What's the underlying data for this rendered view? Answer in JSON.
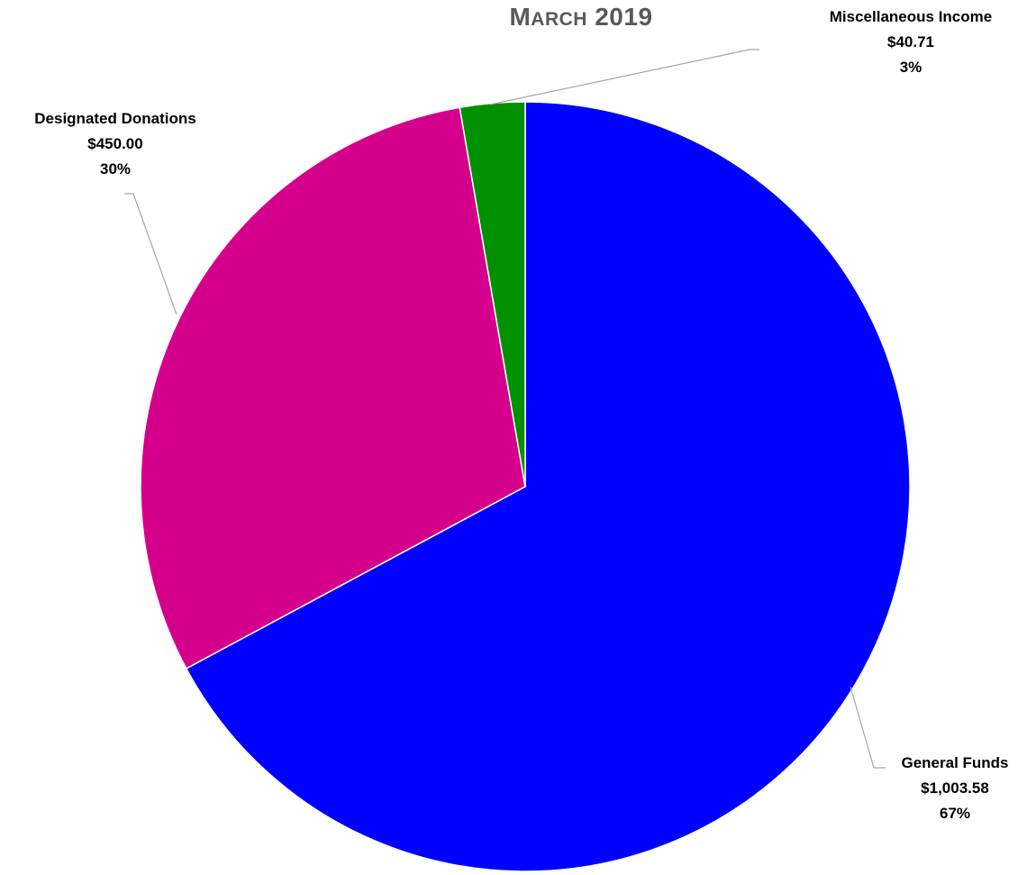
{
  "chart_data": {
    "type": "pie",
    "title": "March 2019",
    "slices": [
      {
        "label": "General Funds",
        "value": 1003.58,
        "value_label": "$1,003.58",
        "percent_label": "67%",
        "color": "#0000FF"
      },
      {
        "label": "Designated Donations",
        "value": 450.0,
        "value_label": "$450.00",
        "percent_label": "30%",
        "color": "#D4008C"
      },
      {
        "label": "Miscellaneous Income",
        "value": 40.71,
        "value_label": "$40.71",
        "percent_label": "3%",
        "color": "#009000"
      }
    ],
    "legend": "none",
    "data_labels": "outside-with-leader-lines"
  },
  "colors": {
    "title": "#595959",
    "leader_line": "#A6A6A6",
    "slice_border": "#FFFFFF"
  }
}
